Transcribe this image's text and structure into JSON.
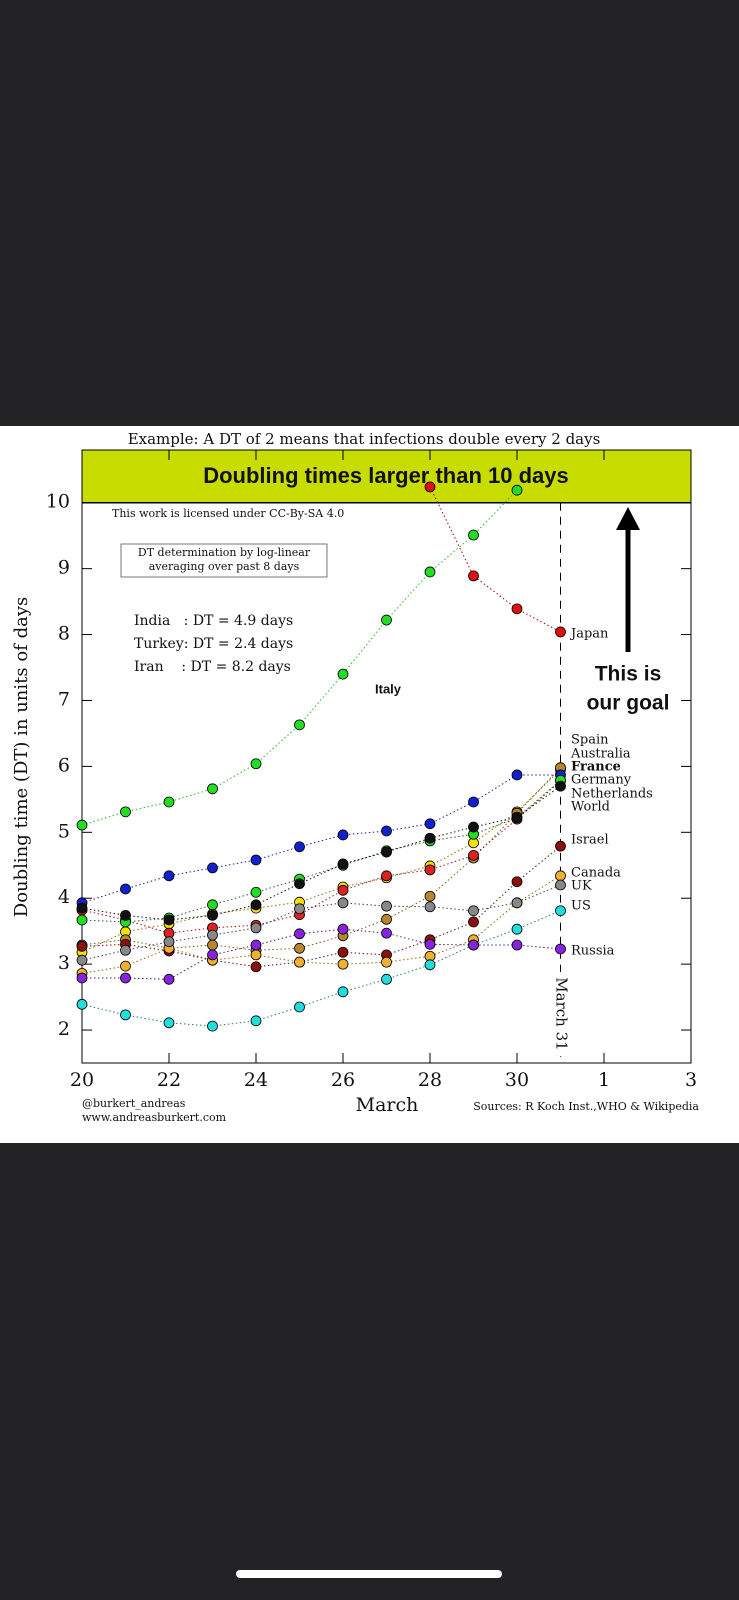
{
  "chart_data": {
    "type": "line",
    "title": "Doubling times larger than 10 days",
    "subtitle": "Example: A DT of 2 means that infections double every 2 days",
    "license": "This work is licensed under CC-By-SA 4.0",
    "method_note": [
      "DT determination by log-linear",
      "averaging over past 8 days"
    ],
    "notes": [
      "India   : DT = 4.9 days",
      "Turkey: DT = 2.4 days",
      "Iran    : DT = 8.2 days"
    ],
    "goal": [
      "This is",
      "our goal"
    ],
    "marker_line": {
      "x": 31,
      "label": "March 31"
    },
    "x_label": "March",
    "y_label": "Doubling time (DT) in units of days",
    "credits": [
      "@burkert_andreas",
      "www.andreasburkert.com"
    ],
    "sources": "Sources: R Koch Inst.,WHO & Wikipedia",
    "band_from": 10,
    "x": [
      20,
      21,
      22,
      23,
      24,
      25,
      26,
      27,
      28,
      29,
      30,
      31
    ],
    "xlim": [
      20,
      34
    ],
    "xticks": [
      20,
      22,
      24,
      26,
      28,
      30,
      {
        "value": 32,
        "label": "1"
      },
      {
        "value": 34,
        "label": "3"
      }
    ],
    "ylim": [
      1.5,
      10.8
    ],
    "yticks": [
      2,
      3,
      4,
      5,
      6,
      7,
      8,
      9,
      10
    ],
    "series": [
      {
        "name": "Italy",
        "color": "#22dd22",
        "label_color": "#22bb22",
        "values": [
          5.11,
          5.31,
          5.46,
          5.66,
          6.04,
          6.63,
          7.4,
          8.22,
          8.95,
          9.51,
          10.19,
          null
        ]
      },
      {
        "name": "Japan",
        "color": "#dd1111",
        "label_color": "#aa0000",
        "values": [
          null,
          null,
          null,
          null,
          null,
          null,
          null,
          null,
          10.24,
          8.89,
          8.39,
          8.04
        ]
      },
      {
        "name": "Spain",
        "color": "#f5e000",
        "label_color": "#7a7a00",
        "values": [
          3.18,
          3.49,
          3.61,
          3.76,
          3.85,
          3.94,
          4.17,
          4.31,
          4.49,
          4.84,
          5.31,
          5.95
        ]
      },
      {
        "name": "Australia",
        "color": "#b8862b",
        "label_color": "#7a5a10",
        "values": [
          3.29,
          3.37,
          3.24,
          3.29,
          3.21,
          3.24,
          3.43,
          3.68,
          4.03,
          4.61,
          5.29,
          5.98
        ]
      },
      {
        "name": "France",
        "color": "#1122cc",
        "label_color": "#1122aa",
        "values": [
          3.93,
          4.14,
          4.34,
          4.46,
          4.58,
          4.78,
          4.96,
          5.02,
          5.13,
          5.46,
          5.87,
          5.87
        ]
      },
      {
        "name": "Germany",
        "color": "#dd2222",
        "label_color": "#aa1111",
        "values": [
          3.82,
          3.67,
          3.47,
          3.55,
          3.59,
          3.75,
          4.12,
          4.34,
          4.43,
          4.65,
          5.2,
          5.78
        ]
      },
      {
        "name": "Netherlands",
        "color": "#22dd22",
        "label_color": "#226622",
        "values": [
          3.67,
          3.64,
          3.7,
          3.9,
          4.09,
          4.29,
          4.5,
          4.72,
          4.87,
          4.97,
          5.22,
          5.79
        ]
      },
      {
        "name": "World",
        "color": "#111111",
        "label_color": "#111111",
        "values": [
          3.85,
          3.74,
          3.67,
          3.74,
          3.9,
          4.22,
          4.52,
          4.7,
          4.91,
          5.08,
          5.23,
          5.7
        ]
      },
      {
        "name": "Israel",
        "color": "#8b1010",
        "label_color": "#6a1010",
        "values": [
          3.27,
          3.3,
          3.2,
          3.06,
          2.96,
          3.03,
          3.18,
          3.14,
          3.37,
          3.64,
          4.25,
          4.79
        ]
      },
      {
        "name": "Canada",
        "color": "#f0b030",
        "label_color": "#8a6a10",
        "values": [
          2.86,
          2.97,
          3.24,
          3.06,
          3.14,
          3.03,
          3.0,
          3.03,
          3.12,
          3.37,
          3.93,
          4.34
        ]
      },
      {
        "name": "UK",
        "color": "#888888",
        "label_color": "#444444",
        "values": [
          3.06,
          3.21,
          3.34,
          3.44,
          3.55,
          3.84,
          3.93,
          3.88,
          3.87,
          3.81,
          3.93,
          4.2
        ]
      },
      {
        "name": "US",
        "color": "#22dddd",
        "label_color": "#227788",
        "values": [
          2.39,
          2.23,
          2.11,
          2.06,
          2.14,
          2.35,
          2.58,
          2.77,
          2.99,
          3.29,
          3.53,
          3.81
        ]
      },
      {
        "name": "Russia",
        "color": "#8822dd",
        "label_color": "#551188",
        "values": [
          2.79,
          2.79,
          2.77,
          3.14,
          3.29,
          3.46,
          3.53,
          3.47,
          3.3,
          3.29,
          3.29,
          3.23
        ]
      }
    ]
  }
}
